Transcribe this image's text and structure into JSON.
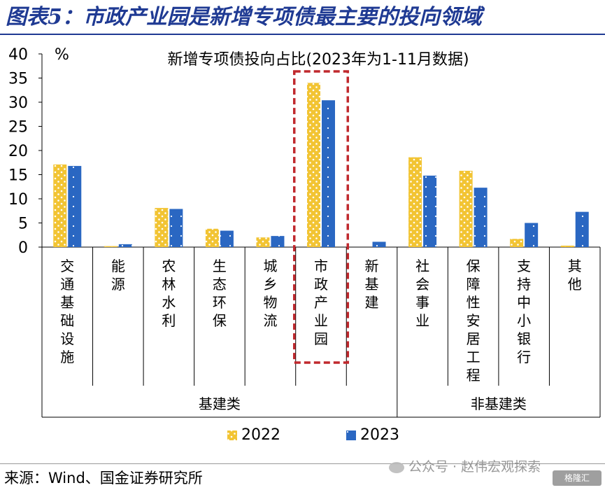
{
  "figure_title": "图表5：市政产业园是新增专项债最主要的投向领域",
  "footer": {
    "source": "来源：Wind、国金证券研究所",
    "watermark": "公众号 · 赵伟宏观探索",
    "logo_text": "格隆汇"
  },
  "colors": {
    "title": "#1f3a93",
    "series_2022": "#F2C433",
    "series_2023": "#2A67C2",
    "highlight": "#C0282D"
  },
  "chart_data": {
    "type": "bar",
    "title": "新增专项债投向占比(2023年为1-11月数据)",
    "ylabel": "%",
    "ylim": [
      0,
      40
    ],
    "yticks": [
      0,
      5,
      10,
      15,
      20,
      25,
      30,
      35,
      40
    ],
    "categories": [
      "交通基础设施",
      "能源",
      "农林水利",
      "生态环保",
      "城乡物流",
      "市政产业园",
      "新基建",
      "社会事业",
      "保障性安居工程",
      "支持中小银行",
      "其他"
    ],
    "series": [
      {
        "name": "2022",
        "values": [
          17.1,
          0.2,
          8.1,
          3.8,
          2.0,
          34.0,
          0.0,
          18.6,
          15.8,
          1.7,
          0.3
        ]
      },
      {
        "name": "2023",
        "values": [
          16.8,
          0.6,
          7.9,
          3.4,
          2.3,
          30.4,
          1.1,
          14.8,
          12.3,
          5.0,
          7.3
        ]
      }
    ],
    "groups": [
      {
        "label": "基建类",
        "from": 0,
        "to": 6
      },
      {
        "label": "非基建类",
        "from": 7,
        "to": 10
      }
    ],
    "highlighted_category": "市政产业园",
    "legend_position": "bottom-center",
    "grid": false
  }
}
